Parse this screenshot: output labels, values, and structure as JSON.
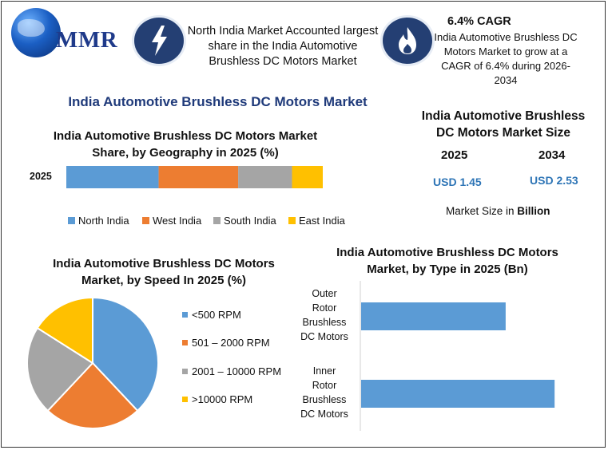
{
  "brand": {
    "logo_text": "MMR"
  },
  "header": {
    "highlight_1": "North India Market Accounted largest share in the India Automotive Brushless DC Motors Market",
    "cagr_title": "6.4% CAGR",
    "cagr_text": "India Automotive Brushless DC Motors Market to grow at a CAGR of 6.4% during 2026-2034"
  },
  "main_title": "India Automotive Brushless DC Motors Market",
  "market_size": {
    "title": "India Automotive Brushless DC Motors Market Size",
    "year_1": "2025",
    "year_2": "2034",
    "value_1": "USD 1.45",
    "value_2": "USD 2.53",
    "note_prefix": "Market Size in ",
    "note_unit": "Billion"
  },
  "colors": {
    "blue": "#5b9bd5",
    "orange": "#ed7d31",
    "gray": "#a5a5a5",
    "yellow": "#ffc000",
    "title_navy": "#1f3a7a",
    "usd_blue": "#2e75b6",
    "badge_navy": "#243f73"
  },
  "chart_data": [
    {
      "type": "bar",
      "orientation": "horizontal-stacked",
      "title": "India Automotive Brushless DC Motors Market Share, by Geography in 2025 (%)",
      "categories": [
        "2025"
      ],
      "series": [
        {
          "name": "North India",
          "values": [
            36
          ],
          "color": "#5b9bd5"
        },
        {
          "name": "West India",
          "values": [
            31
          ],
          "color": "#ed7d31"
        },
        {
          "name": "South India",
          "values": [
            21
          ],
          "color": "#a5a5a5"
        },
        {
          "name": "East India",
          "values": [
            12
          ],
          "color": "#ffc000"
        }
      ],
      "legend": "bottom"
    },
    {
      "type": "pie",
      "title": "India Automotive Brushless DC Motors Market, by Speed In 2025 (%)",
      "slices": [
        {
          "label": "<500 RPM",
          "value": 38,
          "color": "#5b9bd5"
        },
        {
          "label": "501 – 2000 RPM",
          "value": 24,
          "color": "#ed7d31"
        },
        {
          "label": "2001 – 10000 RPM",
          "value": 22,
          "color": "#a5a5a5"
        },
        {
          "label": ">10000 RPM",
          "value": 16,
          "color": "#ffc000"
        }
      ],
      "legend": "right"
    },
    {
      "type": "bar",
      "orientation": "horizontal",
      "title": "India Automotive Brushless DC Motors Market, by Type in 2025 (Bn)",
      "categories": [
        "Outer Rotor Brushless DC Motors",
        "Inner Rotor Brushless DC Motors"
      ],
      "category_lines": [
        [
          "Outer",
          "Rotor",
          "Brushless",
          "DC Motors"
        ],
        [
          "Inner",
          "Rotor",
          "Brushless",
          "DC Motors"
        ]
      ],
      "values": [
        0.62,
        0.83
      ],
      "xlim": [
        0,
        0.85
      ],
      "color": "#5b9bd5"
    }
  ]
}
